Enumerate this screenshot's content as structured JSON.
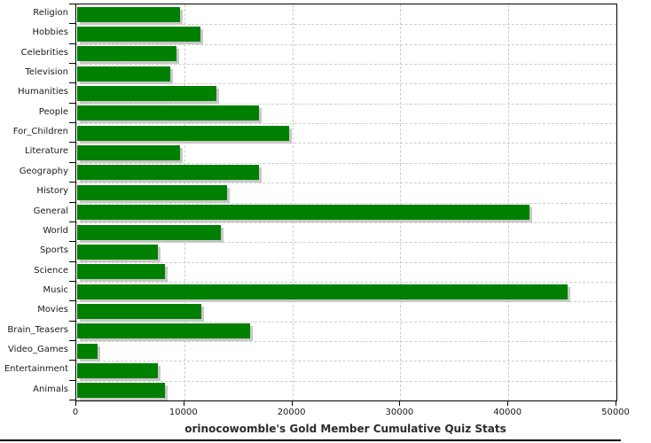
{
  "chart_data": {
    "type": "bar",
    "orientation": "horizontal",
    "title": "orinocowomble's Gold Member Cumulative Quiz Stats",
    "categories": [
      "Religion",
      "Hobbies",
      "Celebrities",
      "Television",
      "Humanities",
      "People",
      "For_Children",
      "Literature",
      "Geography",
      "History",
      "General",
      "World",
      "Sports",
      "Science",
      "Music",
      "Movies",
      "Brain_Teasers",
      "Video_Games",
      "Entertainment",
      "Animals"
    ],
    "values": [
      9500,
      11400,
      9200,
      8600,
      12900,
      16800,
      19600,
      9500,
      16800,
      13900,
      41900,
      13300,
      7500,
      8100,
      45400,
      11500,
      16000,
      1900,
      7500,
      8100
    ],
    "xlabel": "",
    "ylabel": "",
    "xlim": [
      0,
      50000
    ],
    "x_ticks": [
      0,
      10000,
      20000,
      30000,
      40000,
      50000
    ],
    "grid": true,
    "legend": "none",
    "colors": {
      "bar": "#008000",
      "bar_shadow": "#c8c8c8",
      "grid": "#cccccc",
      "axis": "#000000",
      "text": "#1a1a1a"
    }
  }
}
